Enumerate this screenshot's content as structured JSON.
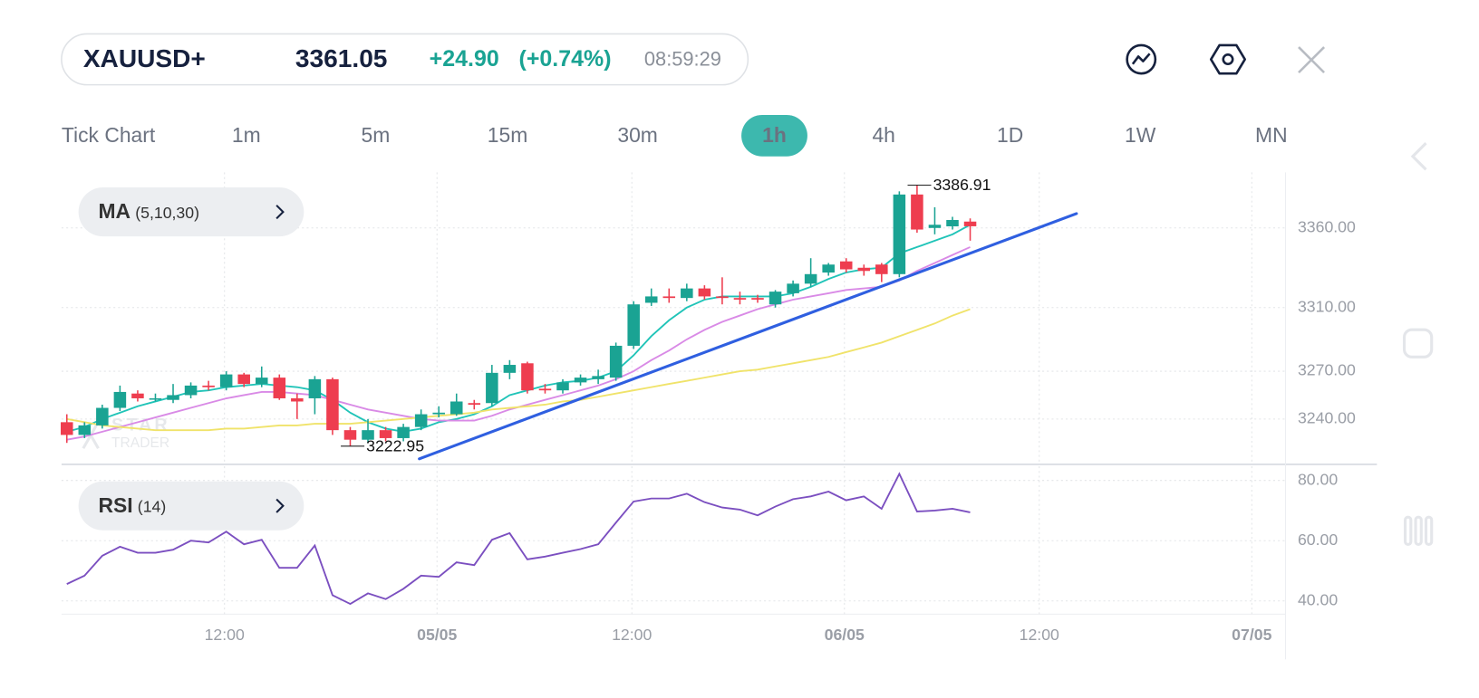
{
  "header": {
    "symbol": "XAUUSD+",
    "price": "3361.05",
    "change": "+24.90",
    "change_pct": "(+0.74%)",
    "time": "08:59:29"
  },
  "timeframes": [
    "Tick Chart",
    "1m",
    "5m",
    "15m",
    "30m",
    "1h",
    "4h",
    "1D",
    "1W",
    "MN"
  ],
  "active_timeframe": "1h",
  "watermark": {
    "line1": "STAR",
    "line2": "TRADER"
  },
  "chart_data": [
    {
      "type": "candlestick",
      "indicator": {
        "name": "MA",
        "params": "(5,10,30)"
      },
      "up_color": "#1aa393",
      "down_color": "#ee3d4f",
      "open": [
        3238,
        3230,
        3236,
        3247,
        3256,
        3253,
        3252,
        3255,
        3261,
        3260,
        3268,
        3262,
        3266,
        3253,
        3253,
        3265,
        3233,
        3227,
        3233,
        3228,
        3235,
        3243,
        3243,
        3250,
        3250,
        3269,
        3275,
        3259,
        3258,
        3263,
        3265,
        3266,
        3286,
        3313,
        3317,
        3316,
        3322,
        3317,
        3316,
        3316,
        3312,
        3319,
        3325,
        3332,
        3339,
        3335,
        3337,
        3331,
        3381,
        3360,
        3361,
        3364
      ],
      "high": [
        3243,
        3238,
        3249,
        3261,
        3258,
        3256,
        3262,
        3263,
        3264,
        3270,
        3269,
        3273,
        3268,
        3256,
        3267,
        3266,
        3235,
        3240,
        3235,
        3237,
        3246,
        3248,
        3256,
        3252,
        3274,
        3277,
        3276,
        3262,
        3265,
        3268,
        3271,
        3288,
        3314,
        3322,
        3322,
        3325,
        3324,
        3329,
        3320,
        3318,
        3321,
        3327,
        3341,
        3338,
        3341,
        3337,
        3338,
        3383,
        3386.91,
        3373,
        3367,
        3366
      ],
      "low": [
        3225,
        3228,
        3234,
        3245,
        3251,
        3251,
        3250,
        3253,
        3258,
        3258,
        3260,
        3260,
        3252,
        3240,
        3243,
        3230,
        3222.95,
        3225,
        3226,
        3226,
        3233,
        3241,
        3242,
        3246,
        3248,
        3265,
        3256,
        3256,
        3256,
        3261,
        3262,
        3264,
        3284,
        3311,
        3313,
        3314,
        3315,
        3312,
        3312,
        3313,
        3310,
        3317,
        3323,
        3330,
        3332,
        3330,
        3326,
        3329,
        3357,
        3356,
        3359,
        3352
      ],
      "close": [
        3230,
        3236,
        3247,
        3257,
        3253,
        3253,
        3255,
        3261,
        3260,
        3268,
        3262,
        3266,
        3253,
        3251,
        3265,
        3233,
        3227,
        3233,
        3228,
        3235,
        3243,
        3244,
        3251,
        3249,
        3269,
        3274,
        3258,
        3258,
        3263,
        3266,
        3267,
        3286,
        3312,
        3317,
        3316,
        3322,
        3317,
        3316,
        3315,
        3315,
        3320,
        3325,
        3331,
        3337,
        3334,
        3333,
        3331,
        3381,
        3359,
        3362,
        3365,
        3361.05
      ],
      "overlays": [
        {
          "color": "#20c4b8",
          "values": [
            3232,
            3235,
            3240,
            3244,
            3248,
            3251,
            3254,
            3257,
            3258,
            3260,
            3261,
            3262,
            3261,
            3260,
            3258,
            3252,
            3244,
            3238,
            3234,
            3232,
            3234,
            3238,
            3240,
            3243,
            3248,
            3255,
            3258,
            3261,
            3263,
            3264,
            3266,
            3270,
            3280,
            3292,
            3302,
            3310,
            3315,
            3317,
            3317,
            3317,
            3317,
            3319,
            3323,
            3328,
            3332,
            3334,
            3335,
            3344,
            3348,
            3352,
            3356,
            3362
          ]
        },
        {
          "color": "#d98ae6",
          "values": [
            3227,
            3229,
            3232,
            3235,
            3238,
            3241,
            3244,
            3247,
            3250,
            3253,
            3255,
            3257,
            3257,
            3256,
            3255,
            3252,
            3249,
            3246,
            3244,
            3242,
            3240,
            3239,
            3239,
            3239,
            3242,
            3246,
            3249,
            3252,
            3255,
            3258,
            3261,
            3265,
            3270,
            3277,
            3283,
            3290,
            3296,
            3301,
            3305,
            3309,
            3312,
            3315,
            3317,
            3319,
            3321,
            3322,
            3323,
            3327,
            3333,
            3338,
            3343,
            3348
          ]
        },
        {
          "color": "#f0e36a",
          "values": [
            3240,
            3238,
            3236,
            3235,
            3234,
            3233,
            3233,
            3233,
            3233,
            3234,
            3234,
            3235,
            3236,
            3236,
            3237,
            3237,
            3237,
            3238,
            3239,
            3240,
            3241,
            3242,
            3243,
            3244,
            3246,
            3247,
            3248,
            3249,
            3251,
            3252,
            3254,
            3256,
            3258,
            3260,
            3262,
            3264,
            3266,
            3268,
            3270,
            3271,
            3273,
            3275,
            3277,
            3279,
            3282,
            3285,
            3288,
            3292,
            3296,
            3300,
            3305,
            3309
          ]
        }
      ],
      "trendline": {
        "color": "#2f5fe0",
        "x": [
          19.9,
          57
        ],
        "y": [
          3215,
          3369
        ]
      },
      "xlim": [
        -0.3,
        68.8
      ],
      "xticks": [
        {
          "value": 8.9,
          "label": "12:00"
        },
        {
          "value": 20.9,
          "label": "05/05"
        },
        {
          "value": 31.9,
          "label": "12:00"
        },
        {
          "value": 43.9,
          "label": "06/05"
        },
        {
          "value": 54.9,
          "label": "12:00"
        },
        {
          "value": 66.9,
          "label": "07/05"
        }
      ],
      "ylim": [
        3211.5,
        3394.9
      ],
      "yticks": [
        {
          "value": 3240,
          "label": "3240.00"
        },
        {
          "value": 3270,
          "label": "3270.00"
        },
        {
          "value": 3310,
          "label": "3310.00"
        },
        {
          "value": 3360,
          "label": "3360.00"
        }
      ],
      "grid": true
    },
    {
      "type": "line",
      "indicator": {
        "name": "RSI",
        "params": "(14)"
      },
      "color": "#7b4fc0",
      "values": [
        45.6,
        48.4,
        55,
        58,
        56,
        56,
        57,
        60,
        59.4,
        63,
        58.8,
        60.3,
        51,
        51,
        58.4,
        41.9,
        39,
        42.5,
        40.6,
        44,
        48.4,
        48,
        52.8,
        51.9,
        60.3,
        62.5,
        53.8,
        54.7,
        56,
        57.2,
        58.8,
        66,
        73,
        74,
        74,
        75.6,
        72.8,
        71,
        70.3,
        68.4,
        71.3,
        73.8,
        74.7,
        76.3,
        73.4,
        74.7,
        70.6,
        82.2,
        69.7,
        70,
        70.6,
        69.4
      ],
      "xlim": [
        -0.3,
        68.8
      ],
      "xticks": [
        {
          "value": 8.9,
          "label": "12:00"
        },
        {
          "value": 20.9,
          "label": "05/05"
        },
        {
          "value": 31.9,
          "label": "12:00"
        },
        {
          "value": 43.9,
          "label": "06/05"
        },
        {
          "value": 54.9,
          "label": "12:00"
        },
        {
          "value": 66.9,
          "label": "07/05"
        }
      ],
      "ylim": [
        35.6,
        84.7
      ],
      "yticks": [
        {
          "value": 40,
          "label": "40.00"
        },
        {
          "value": 60,
          "label": "60.00"
        },
        {
          "value": 80,
          "label": "80.00"
        }
      ],
      "grid": true
    }
  ]
}
